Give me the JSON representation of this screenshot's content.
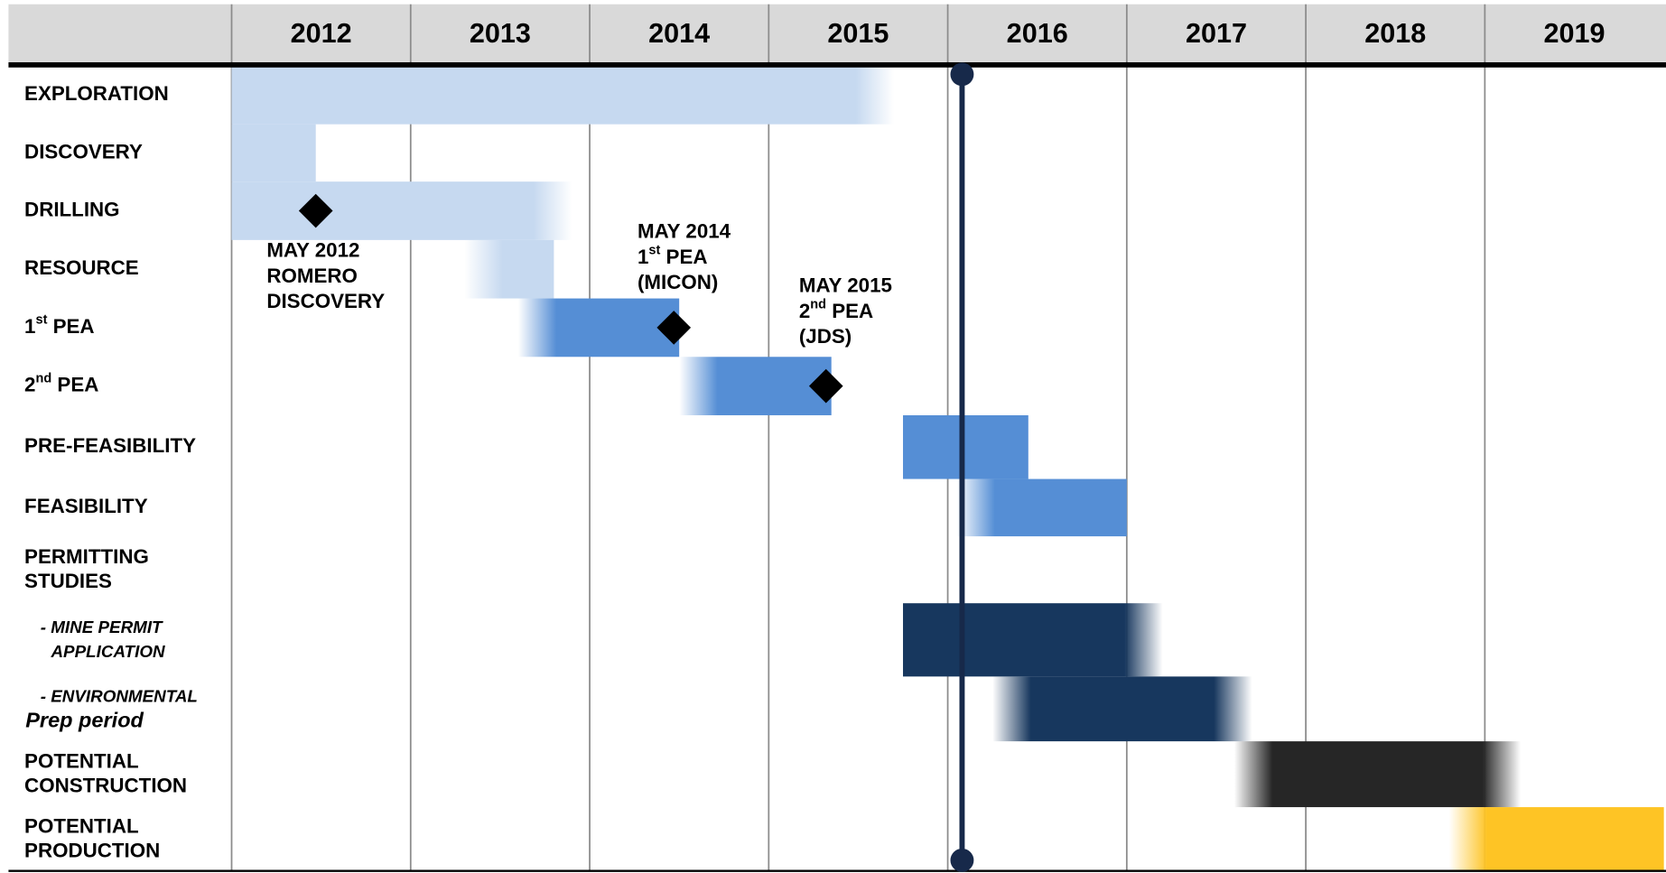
{
  "chart_data": {
    "type": "gantt",
    "xlim": [
      2012,
      2020
    ],
    "xticks": [
      2012,
      2013,
      2014,
      2015,
      2016,
      2017,
      2018,
      2019
    ],
    "grid": true,
    "tasks": [
      {
        "label": [
          "EXPLORATION"
        ],
        "start": 2012.0,
        "end": 2015.7,
        "color": "#c6d9f0",
        "fade": "right"
      },
      {
        "label": [
          "DISCOVERY"
        ],
        "start": 2012.0,
        "end": 2012.47,
        "color": "#c6d9f0",
        "fade": "none"
      },
      {
        "label": [
          "DRILLING"
        ],
        "start": 2012.0,
        "end": 2013.9,
        "color": "#c6d9f0",
        "fade": "right"
      },
      {
        "label": [
          "RESOURCE"
        ],
        "start": 2013.3,
        "end": 2013.8,
        "color": "#c6d9f0",
        "fade": "left"
      },
      {
        "label": [
          "1st PEA"
        ],
        "start": 2013.6,
        "end": 2014.5,
        "color": "#558ed5",
        "fade": "left"
      },
      {
        "label": [
          "2nd PEA"
        ],
        "start": 2014.5,
        "end": 2015.35,
        "color": "#558ed5",
        "fade": "left"
      },
      {
        "label": [
          "PRE-FEASIBILITY"
        ],
        "start": 2015.75,
        "end": 2016.45,
        "color": "#558ed5",
        "fade": "none"
      },
      {
        "label": [
          "FEASIBILITY"
        ],
        "start": 2016.05,
        "end": 2017.0,
        "color": "#558ed5",
        "fade": "left"
      },
      {
        "label": [
          "PERMITTING",
          "STUDIES"
        ]
      },
      {
        "label": [
          "- MINE PERMIT",
          "APPLICATION"
        ],
        "start": 2015.75,
        "end": 2017.2,
        "color": "#17375e",
        "fade": "right"
      },
      {
        "label": [
          "- ENVIRONMENTAL",
          "Prep  period"
        ],
        "start": 2016.25,
        "end": 2017.7,
        "color": "#17375e",
        "fade": "both"
      },
      {
        "label": [
          "POTENTIAL",
          "CONSTRUCTION"
        ],
        "start": 2017.6,
        "end": 2019.2,
        "color": "#262626",
        "fade": "both"
      },
      {
        "label": [
          "POTENTIAL",
          "PRODUCTION"
        ],
        "start": 2018.8,
        "end": 2020.0,
        "color": "#fec425",
        "fade": "left"
      }
    ],
    "milestones": [
      {
        "date": 2012.47,
        "label": [
          "MAY 2012",
          "ROMERO",
          "DISCOVERY"
        ]
      },
      {
        "date": 2014.47,
        "label": [
          "MAY 2014",
          "1st PEA",
          "(MICON)"
        ]
      },
      {
        "date": 2015.32,
        "label": [
          "MAY 2015",
          "2nd PEA",
          "(JDS)"
        ]
      }
    ],
    "today": 2016.08,
    "today_color": "#17294a"
  }
}
